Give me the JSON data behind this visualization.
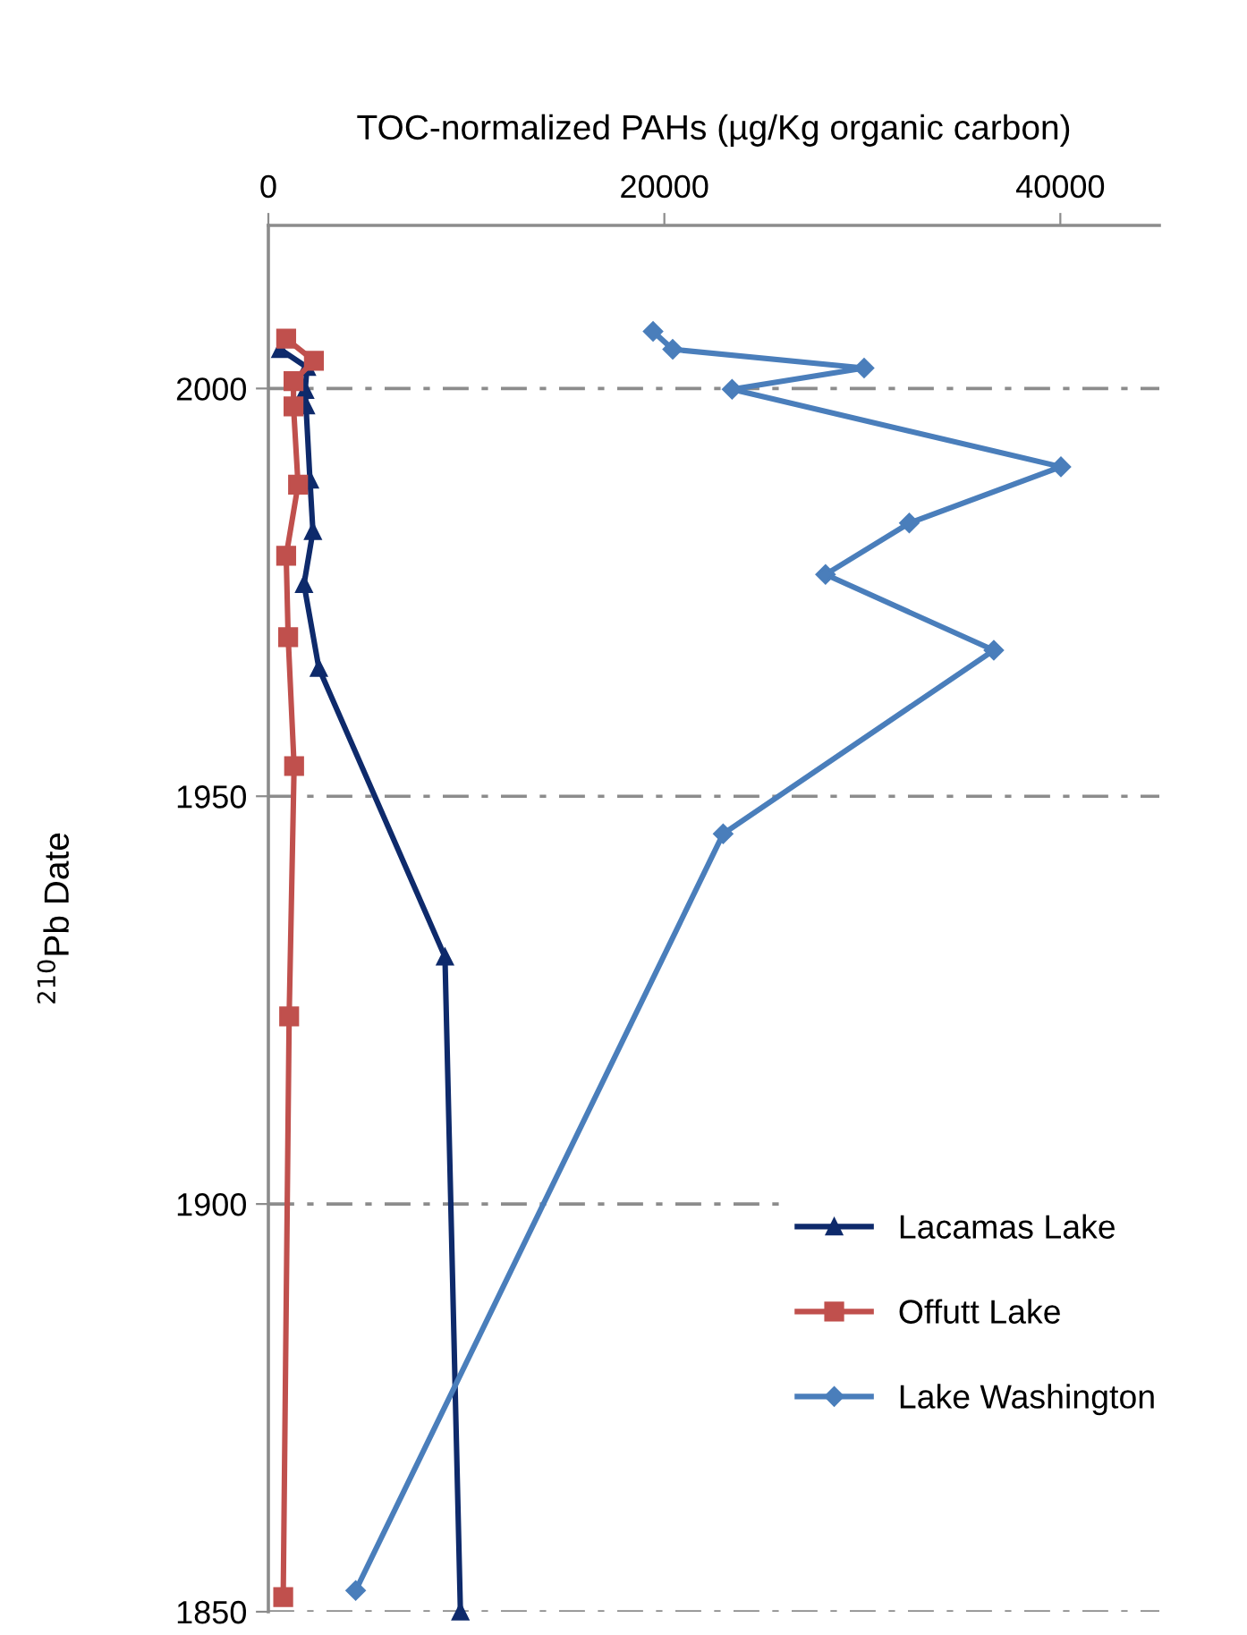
{
  "chart_data": {
    "type": "line",
    "xlabel": "TOC-normalized PAHs (µg/Kg organic carbon)",
    "ylabel": "$^{210}$Pb Date",
    "xlim": [
      0,
      45000
    ],
    "xticks": [
      0,
      20000,
      40000
    ],
    "ylim": [
      1850,
      2020
    ],
    "yticks": [
      1850,
      1900,
      1950,
      2000
    ],
    "grid": "y",
    "legend": "bottom right",
    "series": [
      {
        "name": "Lacamas Lake",
        "color": "#0e2a6b",
        "marker": "triangle",
        "x": [
          600,
          1950,
          1860,
          1900,
          2100,
          2250,
          1800,
          2550,
          8920,
          9700
        ],
        "values": [
          2004.8,
          2002.6,
          1999.8,
          1997.9,
          1988.8,
          1982.5,
          1976,
          1965.7,
          1930.3,
          1850
        ]
      },
      {
        "name": "Offutt Lake",
        "color": "#c0504d",
        "marker": "square",
        "x": [
          900,
          2300,
          1270,
          1270,
          1500,
          900,
          1000,
          1300,
          1050,
          750
        ],
        "values": [
          2006.1,
          2003.4,
          2000.9,
          1997.8,
          1988.2,
          1979.5,
          1969.5,
          1953.7,
          1923,
          1851.8
        ]
      },
      {
        "name": "Lake Washington",
        "color": "#4a7ebb",
        "marker": "diamond",
        "x": [
          19430,
          20420,
          30090,
          23420,
          40030,
          32370,
          28140,
          36640,
          22970,
          4410
        ],
        "values": [
          2007,
          2004.8,
          2002.5,
          1999.9,
          1990.4,
          1983.5,
          1977.2,
          1967.9,
          1945.4,
          1852.6
        ]
      }
    ]
  }
}
